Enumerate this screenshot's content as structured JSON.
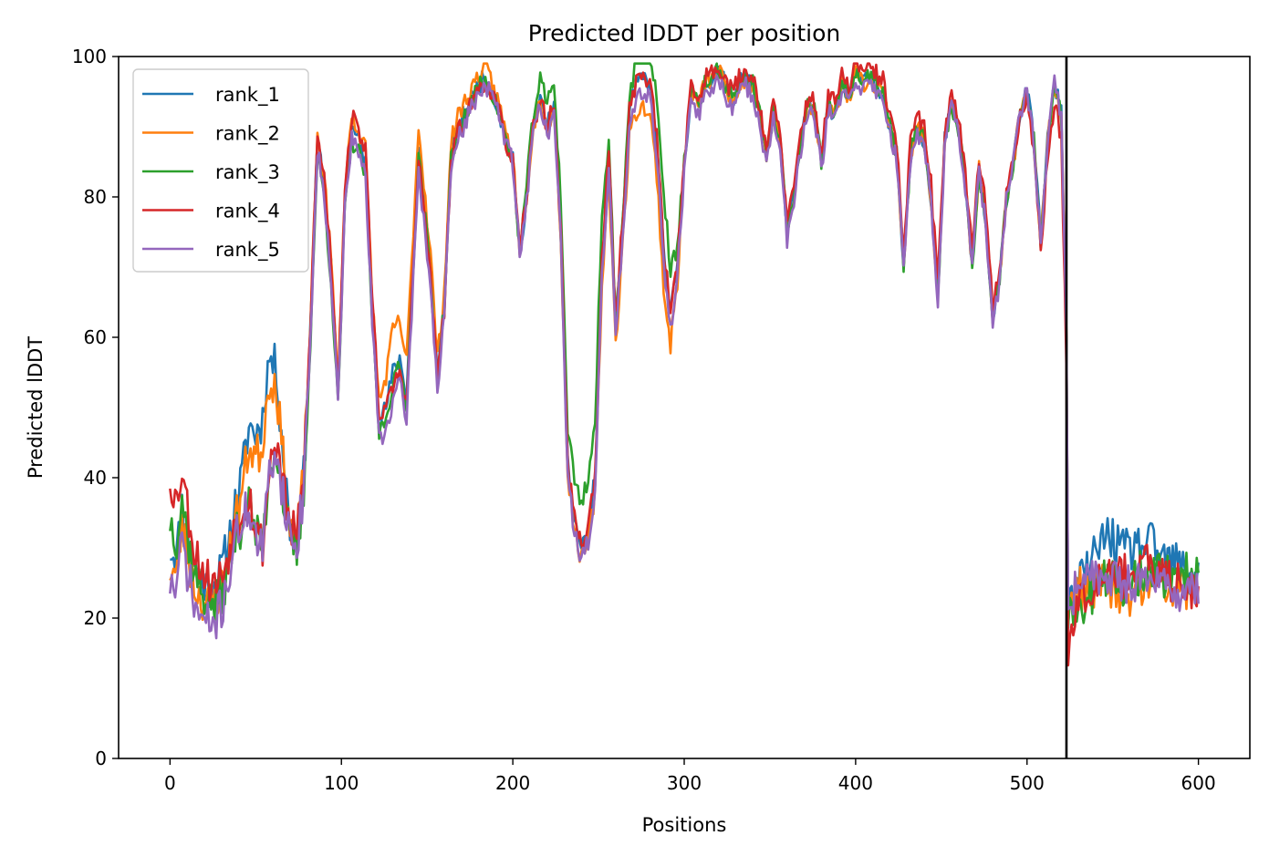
{
  "chart_data": {
    "type": "line",
    "title": "Predicted lDDT per position",
    "xlabel": "Positions",
    "ylabel": "Predicted lDDT",
    "xlim": [
      -30,
      630
    ],
    "ylim": [
      0,
      100
    ],
    "xticks": [
      0,
      100,
      200,
      300,
      400,
      500,
      600
    ],
    "yticks": [
      0,
      20,
      40,
      60,
      80,
      100
    ],
    "legend_position": "top-left",
    "grid": false,
    "vline_x": 523,
    "keypoints": [
      [
        0,
        28
      ],
      [
        4,
        27
      ],
      [
        7,
        34
      ],
      [
        10,
        30
      ],
      [
        14,
        25
      ],
      [
        18,
        23
      ],
      [
        22,
        22
      ],
      [
        26,
        22
      ],
      [
        30,
        24
      ],
      [
        34,
        28
      ],
      [
        38,
        33
      ],
      [
        42,
        36
      ],
      [
        46,
        40
      ],
      [
        50,
        36
      ],
      [
        54,
        35
      ],
      [
        58,
        46
      ],
      [
        62,
        48
      ],
      [
        66,
        40
      ],
      [
        70,
        33
      ],
      [
        74,
        31
      ],
      [
        78,
        40
      ],
      [
        82,
        62
      ],
      [
        86,
        88
      ],
      [
        90,
        82
      ],
      [
        94,
        70
      ],
      [
        98,
        52
      ],
      [
        102,
        80
      ],
      [
        106,
        90
      ],
      [
        110,
        88
      ],
      [
        114,
        85
      ],
      [
        118,
        64
      ],
      [
        122,
        48
      ],
      [
        126,
        50
      ],
      [
        130,
        55
      ],
      [
        134,
        57
      ],
      [
        138,
        52
      ],
      [
        142,
        72
      ],
      [
        145,
        87
      ],
      [
        148,
        80
      ],
      [
        152,
        70
      ],
      [
        156,
        55
      ],
      [
        160,
        65
      ],
      [
        164,
        86
      ],
      [
        168,
        90
      ],
      [
        172,
        92
      ],
      [
        176,
        94
      ],
      [
        180,
        96
      ],
      [
        184,
        97
      ],
      [
        188,
        95
      ],
      [
        192,
        92
      ],
      [
        196,
        88
      ],
      [
        200,
        85
      ],
      [
        204,
        72
      ],
      [
        208,
        80
      ],
      [
        212,
        90
      ],
      [
        216,
        94
      ],
      [
        220,
        90
      ],
      [
        224,
        93
      ],
      [
        228,
        75
      ],
      [
        232,
        42
      ],
      [
        236,
        34
      ],
      [
        240,
        30
      ],
      [
        244,
        33
      ],
      [
        248,
        40
      ],
      [
        252,
        70
      ],
      [
        256,
        86
      ],
      [
        260,
        62
      ],
      [
        264,
        76
      ],
      [
        268,
        92
      ],
      [
        272,
        96
      ],
      [
        276,
        97
      ],
      [
        280,
        96
      ],
      [
        284,
        88
      ],
      [
        288,
        72
      ],
      [
        292,
        63
      ],
      [
        296,
        70
      ],
      [
        300,
        85
      ],
      [
        304,
        95
      ],
      [
        308,
        93
      ],
      [
        312,
        96
      ],
      [
        316,
        97
      ],
      [
        320,
        98
      ],
      [
        324,
        96
      ],
      [
        328,
        94
      ],
      [
        332,
        96
      ],
      [
        336,
        97
      ],
      [
        340,
        96
      ],
      [
        344,
        92
      ],
      [
        348,
        86
      ],
      [
        352,
        92
      ],
      [
        356,
        88
      ],
      [
        360,
        75
      ],
      [
        364,
        80
      ],
      [
        368,
        88
      ],
      [
        372,
        93
      ],
      [
        376,
        92
      ],
      [
        380,
        85
      ],
      [
        384,
        93
      ],
      [
        388,
        92
      ],
      [
        392,
        96
      ],
      [
        396,
        94
      ],
      [
        400,
        98
      ],
      [
        404,
        96
      ],
      [
        408,
        97
      ],
      [
        412,
        96
      ],
      [
        416,
        95
      ],
      [
        420,
        90
      ],
      [
        424,
        86
      ],
      [
        428,
        70
      ],
      [
        432,
        86
      ],
      [
        436,
        90
      ],
      [
        440,
        88
      ],
      [
        444,
        80
      ],
      [
        448,
        66
      ],
      [
        452,
        88
      ],
      [
        456,
        93
      ],
      [
        460,
        90
      ],
      [
        464,
        82
      ],
      [
        468,
        70
      ],
      [
        472,
        84
      ],
      [
        476,
        76
      ],
      [
        480,
        62
      ],
      [
        484,
        68
      ],
      [
        488,
        80
      ],
      [
        492,
        85
      ],
      [
        496,
        92
      ],
      [
        500,
        95
      ],
      [
        504,
        88
      ],
      [
        508,
        74
      ],
      [
        512,
        88
      ],
      [
        516,
        96
      ],
      [
        520,
        92
      ],
      [
        523,
        60
      ],
      [
        524,
        20
      ],
      [
        528,
        24
      ],
      [
        532,
        25
      ],
      [
        540,
        26
      ],
      [
        548,
        27
      ],
      [
        556,
        25
      ],
      [
        564,
        26
      ],
      [
        572,
        27
      ],
      [
        580,
        25
      ],
      [
        590,
        25
      ],
      [
        600,
        24
      ]
    ],
    "series": [
      {
        "name": "rank_1",
        "color": "#1f77b4",
        "seed": 11,
        "offsets": [
          [
            0,
            2
          ],
          [
            40,
            3
          ],
          [
            55,
            14
          ],
          [
            70,
            0
          ],
          [
            130,
            0
          ],
          [
            300,
            0
          ],
          [
            524,
            0
          ],
          [
            535,
            1
          ],
          [
            545,
            5
          ],
          [
            565,
            4
          ],
          [
            600,
            2
          ]
        ]
      },
      {
        "name": "rank_2",
        "color": "#ff7f0e",
        "seed": 23,
        "offsets": [
          [
            0,
            -1
          ],
          [
            40,
            1
          ],
          [
            55,
            10
          ],
          [
            70,
            0
          ],
          [
            120,
            2
          ],
          [
            130,
            6
          ],
          [
            150,
            2
          ],
          [
            200,
            1
          ],
          [
            290,
            -5
          ],
          [
            300,
            0
          ],
          [
            524,
            0
          ],
          [
            555,
            -3
          ],
          [
            600,
            0
          ]
        ]
      },
      {
        "name": "rank_3",
        "color": "#2ca02c",
        "seed": 37,
        "offsets": [
          [
            0,
            6
          ],
          [
            10,
            2
          ],
          [
            40,
            -2
          ],
          [
            55,
            -5
          ],
          [
            70,
            -2
          ],
          [
            100,
            -2
          ],
          [
            200,
            0
          ],
          [
            250,
            8
          ],
          [
            260,
            0
          ],
          [
            290,
            8
          ],
          [
            300,
            0
          ],
          [
            524,
            0
          ],
          [
            530,
            -3
          ],
          [
            560,
            0
          ],
          [
            600,
            2
          ]
        ]
      },
      {
        "name": "rank_4",
        "color": "#d62728",
        "seed": 53,
        "offsets": [
          [
            0,
            12
          ],
          [
            10,
            6
          ],
          [
            20,
            4
          ],
          [
            30,
            2
          ],
          [
            40,
            0
          ],
          [
            55,
            -5
          ],
          [
            70,
            0
          ],
          [
            120,
            2
          ],
          [
            130,
            -2
          ],
          [
            200,
            0
          ],
          [
            480,
            2
          ],
          [
            524,
            -4
          ],
          [
            530,
            -2
          ],
          [
            550,
            1
          ],
          [
            600,
            0
          ]
        ]
      },
      {
        "name": "rank_5",
        "color": "#9467bd",
        "seed": 71,
        "offsets": [
          [
            0,
            -3
          ],
          [
            20,
            -3
          ],
          [
            40,
            -2
          ],
          [
            55,
            -6
          ],
          [
            70,
            -1
          ],
          [
            120,
            -2
          ],
          [
            130,
            -4
          ],
          [
            200,
            0
          ],
          [
            240,
            -2
          ],
          [
            524,
            0
          ],
          [
            600,
            -1
          ]
        ]
      }
    ]
  }
}
